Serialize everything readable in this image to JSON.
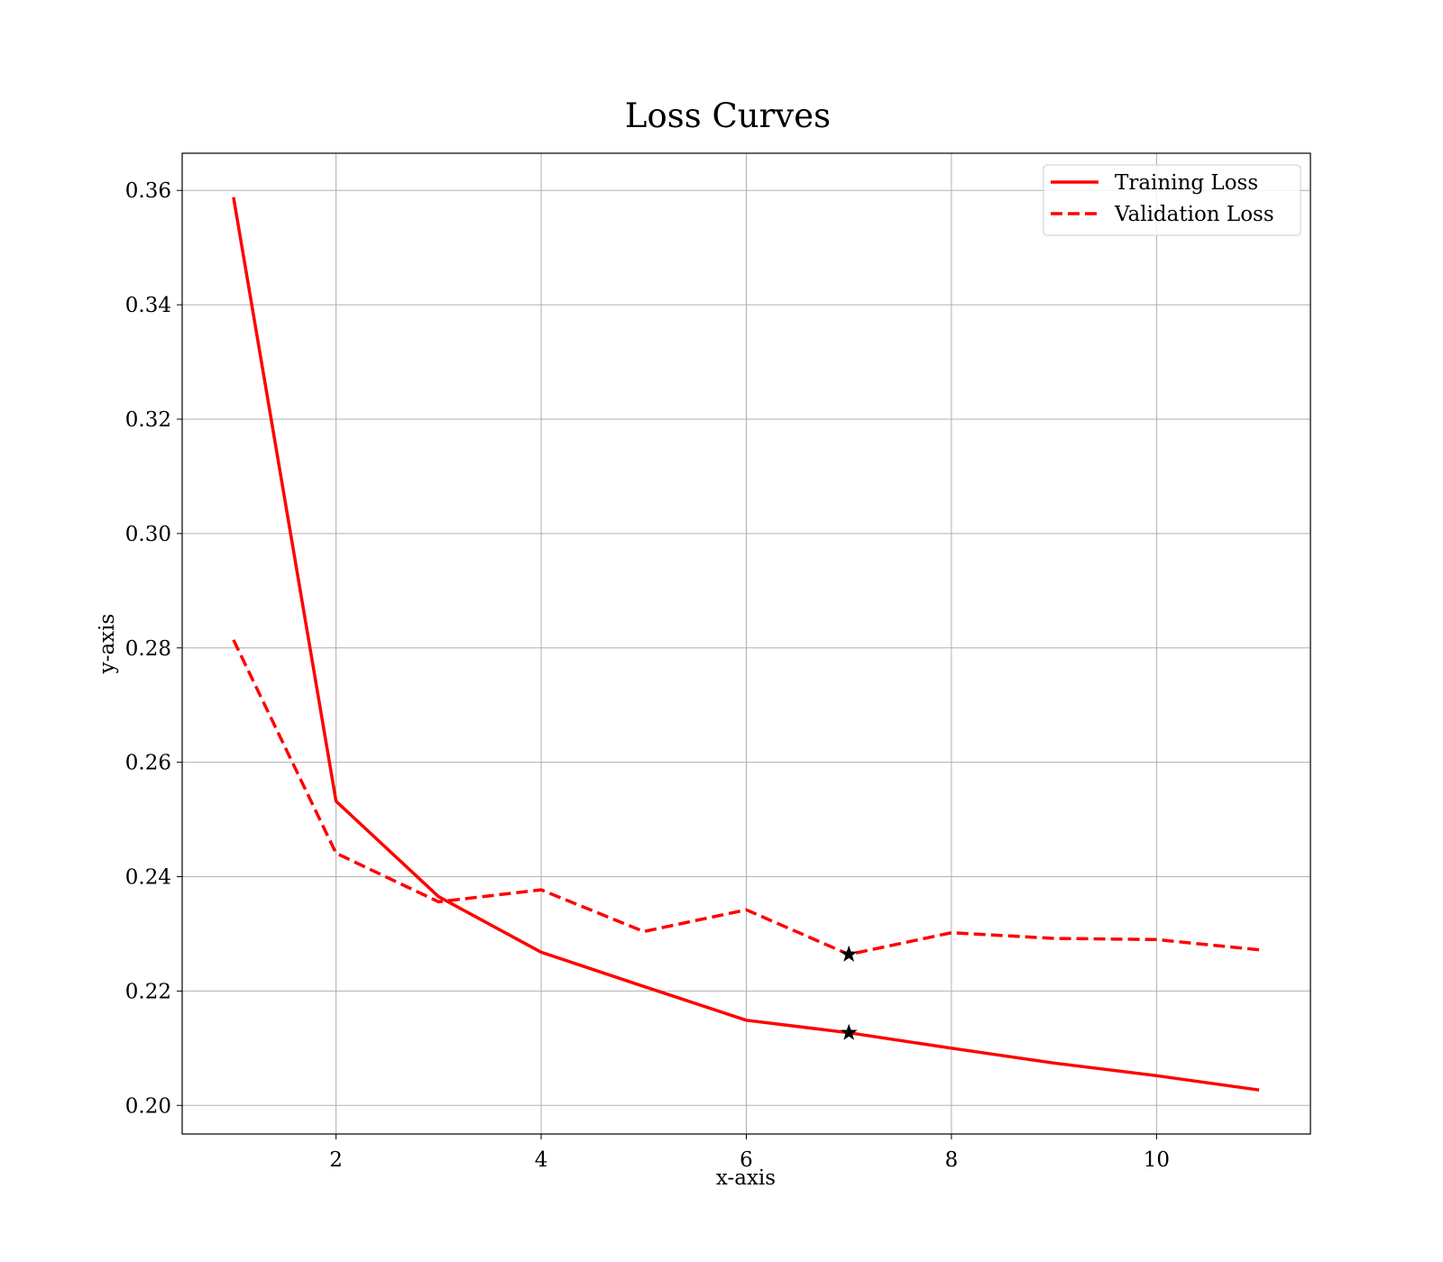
{
  "chart_data": {
    "type": "line",
    "title": "Loss Curves",
    "xlabel": "x-axis",
    "ylabel": "y-axis",
    "xlim": [
      0.5,
      11.5
    ],
    "ylim": [
      0.195,
      0.3665
    ],
    "xticks": [
      2,
      4,
      6,
      8,
      10
    ],
    "xtick_labels": [
      "2",
      "4",
      "6",
      "8",
      "10"
    ],
    "yticks": [
      0.2,
      0.22,
      0.24,
      0.26,
      0.28,
      0.3,
      0.32,
      0.34,
      0.36
    ],
    "ytick_labels": [
      "0.20",
      "0.22",
      "0.24",
      "0.26",
      "0.28",
      "0.30",
      "0.32",
      "0.34",
      "0.36"
    ],
    "grid": true,
    "legend_position": "top-right",
    "x": [
      1,
      2,
      3,
      4,
      5,
      6,
      7,
      8,
      9,
      10,
      11
    ],
    "series": [
      {
        "name": "Training Loss",
        "style": "solid",
        "color": "#ff0000",
        "values": [
          0.3588,
          0.2532,
          0.2365,
          0.2268,
          0.2208,
          0.2149,
          0.2127,
          0.21,
          0.2074,
          0.2052,
          0.2027
        ]
      },
      {
        "name": "Validation Loss",
        "style": "dashed",
        "color": "#ff0000",
        "values": [
          0.2814,
          0.2441,
          0.2356,
          0.2377,
          0.2304,
          0.2342,
          0.2264,
          0.2302,
          0.2292,
          0.229,
          0.2272
        ]
      }
    ],
    "markers": [
      {
        "x": 7,
        "y": 0.2127,
        "symbol": "star",
        "color": "#000000"
      },
      {
        "x": 7,
        "y": 0.2264,
        "symbol": "star",
        "color": "#000000"
      }
    ]
  }
}
